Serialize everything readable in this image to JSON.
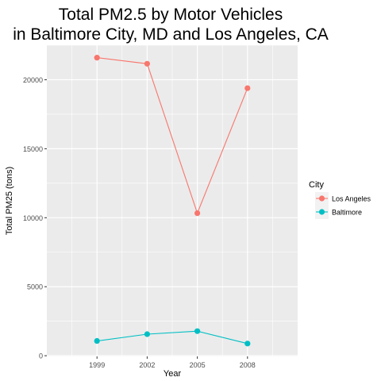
{
  "chart_data": {
    "type": "line",
    "title_lines": [
      "Total PM2.5 by Motor Vehicles",
      "in Baltimore City, MD and Los Angeles, CA"
    ],
    "xlabel": "Year",
    "ylabel": "Total PM25 (tons)",
    "categories": [
      "1999",
      "2002",
      "2005",
      "2008"
    ],
    "x_ticks": [
      "1999",
      "2002",
      "2005",
      "2008"
    ],
    "y_ticks": [
      0,
      5000,
      10000,
      15000,
      20000
    ],
    "y_tick_labels": [
      "0",
      "5000",
      "10000",
      "15000",
      "20000"
    ],
    "ylim": [
      -50,
      22500
    ],
    "grid": true,
    "legend": {
      "title": "City",
      "placement": "right"
    },
    "series": [
      {
        "name": "Los Angeles",
        "color": "#f8766d",
        "values": [
          21600,
          21160,
          10330,
          19390
        ]
      },
      {
        "name": "Baltimore",
        "color": "#00bfc4",
        "values": [
          1070,
          1560,
          1780,
          880
        ]
      }
    ],
    "panel_background": "#ebebeb",
    "grid_color": "#ffffff"
  }
}
